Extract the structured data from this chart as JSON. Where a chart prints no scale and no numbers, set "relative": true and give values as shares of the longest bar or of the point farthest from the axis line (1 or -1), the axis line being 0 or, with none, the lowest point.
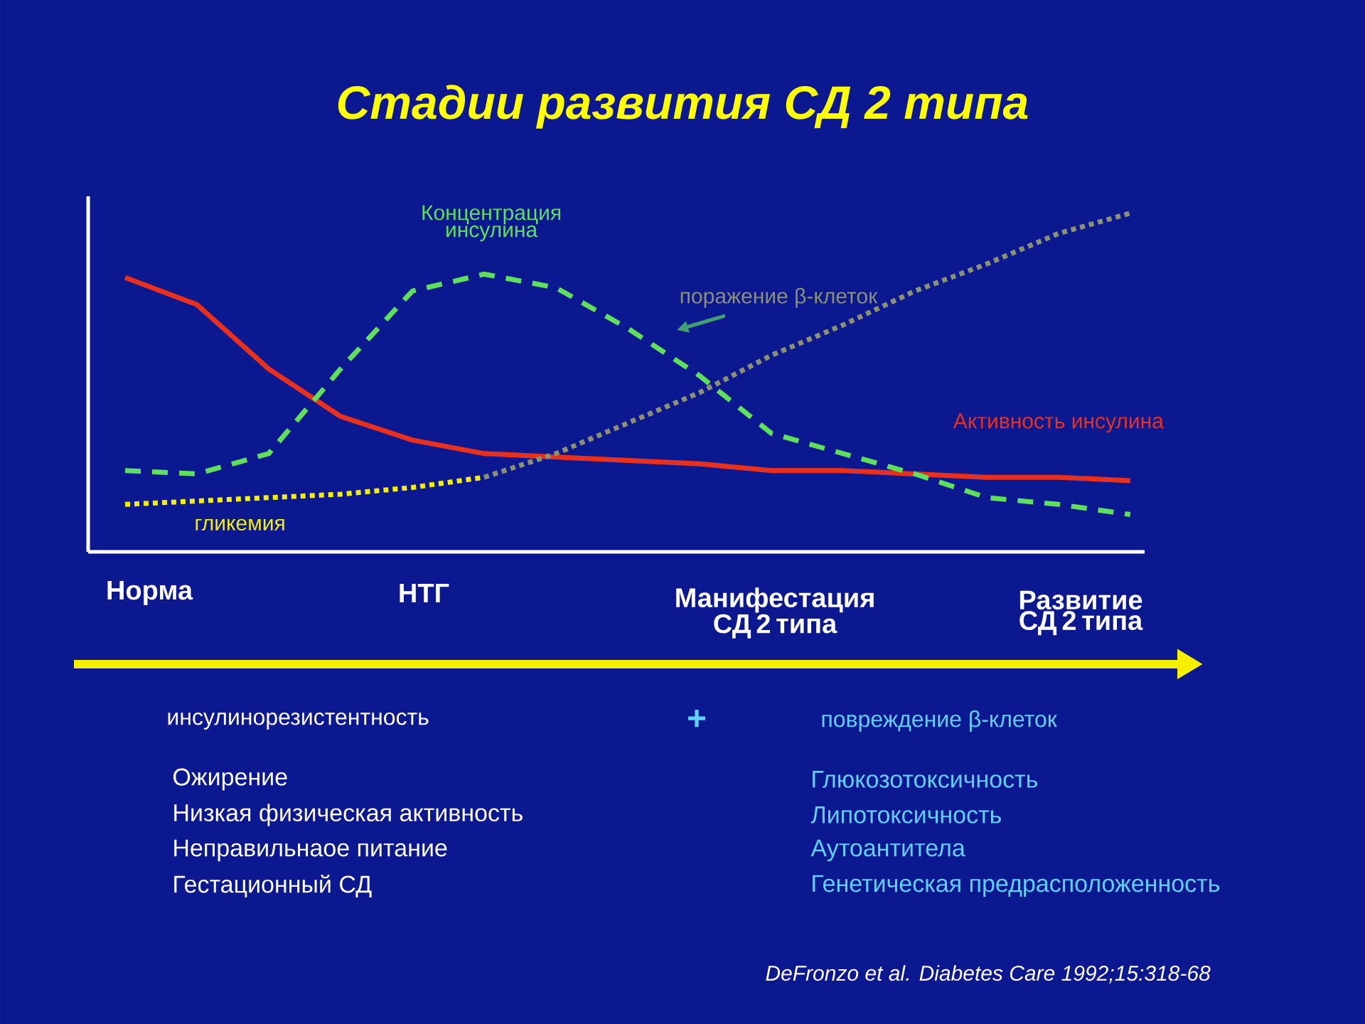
{
  "chart_data": {
    "type": "line",
    "title": "Стадии развития СД 2 типа",
    "relative": true,
    "categories": [
      null,
      null,
      null,
      null,
      null,
      null,
      null,
      null,
      null,
      null,
      null,
      null,
      null,
      null,
      null
    ],
    "series": [
      {
        "name": "Активность инсулина",
        "color": "#e8301c",
        "line_style": "solid",
        "values": [
          0.81,
          0.73,
          0.54,
          0.4,
          0.33,
          0.29,
          0.28,
          0.27,
          0.26,
          0.24,
          0.24,
          0.23,
          0.22,
          0.22,
          0.21
        ]
      },
      {
        "name": "Концентрация инсулина",
        "color": "#5ee05a",
        "line_style": "dashed",
        "values": [
          0.24,
          0.23,
          0.29,
          0.54,
          0.77,
          0.82,
          0.78,
          0.66,
          0.52,
          0.35,
          0.29,
          0.23,
          0.16,
          0.14,
          0.11
        ]
      },
      {
        "name": "гликемия",
        "color": "#f4f000",
        "line_style": "dotted",
        "values": [
          0.14,
          0.15,
          0.16,
          0.17,
          0.19,
          0.22,
          null,
          null,
          null,
          null,
          null,
          null,
          null,
          null,
          null
        ]
      },
      {
        "name": "поражение β-клеток",
        "color": "#8a9270",
        "line_style": "dotted",
        "values": [
          null,
          null,
          null,
          null,
          null,
          0.22,
          0.29,
          0.38,
          0.47,
          0.58,
          0.67,
          0.77,
          0.85,
          0.94,
          1.0
        ]
      }
    ],
    "annotations": [
      "Норма",
      "НТГ",
      "Манифестация СД 2 типа",
      "Развитие СД 2 типа",
      "инсулинорезистентность",
      "+",
      "повреждение β-клеток",
      "Ожирение",
      "Низкая физическая активность",
      "Неправильнаое питание",
      "Гестационный СД",
      "Глюкозотоксичность",
      "Липотоксичность",
      "Аутоантитела",
      "Генетическая предрасположенность",
      "DeFronzo et al. Diabetes Care 1992;15:318-68"
    ]
  }
}
